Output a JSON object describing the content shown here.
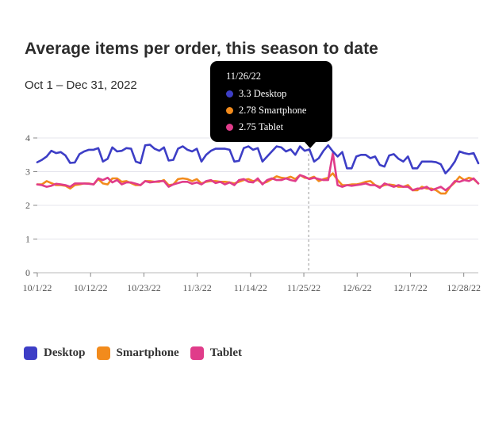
{
  "title": "Average items per order, this season to date",
  "subtitle": "Oct 1 – Dec 31, 2022",
  "colors": {
    "Desktop": "#3d3ec6",
    "Smartphone": "#f28b1c",
    "Tablet": "#e03c8a"
  },
  "tooltip": {
    "date": "11/26/22",
    "rows": [
      {
        "name": "Desktop",
        "value": "3.3",
        "color": "#3d3ec6"
      },
      {
        "name": "Smartphone",
        "value": "2.78",
        "color": "#f28b1c"
      },
      {
        "name": "Tablet",
        "value": "2.75",
        "color": "#e03c8a"
      }
    ]
  },
  "legend": [
    {
      "label": "Desktop",
      "color": "#3d3ec6"
    },
    {
      "label": "Smartphone",
      "color": "#f28b1c"
    },
    {
      "label": "Tablet",
      "color": "#e03c8a"
    }
  ],
  "chart_data": {
    "type": "line",
    "title": "Average items per order, this season to date",
    "subtitle": "Oct 1 – Dec 31, 2022",
    "x_start": "2022-10-01",
    "x_end": "2022-12-31",
    "xlabel": "",
    "ylabel": "",
    "ylim": [
      0,
      4
    ],
    "yticks": [
      0,
      1,
      2,
      3,
      4
    ],
    "xticks": [
      {
        "date": "2022-10-01",
        "label": "10/1/22"
      },
      {
        "date": "2022-10-12",
        "label": "10/12/22"
      },
      {
        "date": "2022-10-23",
        "label": "10/23/22"
      },
      {
        "date": "2022-11-03",
        "label": "11/3/22"
      },
      {
        "date": "2022-11-14",
        "label": "11/14/22"
      },
      {
        "date": "2022-11-25",
        "label": "11/25/22"
      },
      {
        "date": "2022-12-06",
        "label": "12/6/22"
      },
      {
        "date": "2022-12-17",
        "label": "12/17/22"
      },
      {
        "date": "2022-12-28",
        "label": "12/28/22"
      }
    ],
    "grid": true,
    "legend_position": "bottom-left",
    "hover_date": "2022-11-26",
    "series": [
      {
        "name": "Desktop",
        "values": [
          3.28,
          3.35,
          3.45,
          3.62,
          3.55,
          3.58,
          3.48,
          3.26,
          3.27,
          3.52,
          3.6,
          3.65,
          3.65,
          3.7,
          3.3,
          3.38,
          3.72,
          3.6,
          3.62,
          3.7,
          3.68,
          3.3,
          3.25,
          3.78,
          3.8,
          3.68,
          3.62,
          3.72,
          3.33,
          3.35,
          3.68,
          3.75,
          3.65,
          3.6,
          3.68,
          3.3,
          3.5,
          3.62,
          3.68,
          3.68,
          3.68,
          3.65,
          3.3,
          3.32,
          3.7,
          3.75,
          3.65,
          3.7,
          3.3,
          3.45,
          3.6,
          3.75,
          3.72,
          3.6,
          3.66,
          3.5,
          3.75,
          3.62,
          3.66,
          3.3,
          3.4,
          3.62,
          3.78,
          3.6,
          3.45,
          3.58,
          3.1,
          3.1,
          3.45,
          3.5,
          3.5,
          3.4,
          3.45,
          3.2,
          3.15,
          3.48,
          3.52,
          3.38,
          3.3,
          3.45,
          3.1,
          3.1,
          3.3,
          3.3,
          3.3,
          3.28,
          3.22,
          2.95,
          3.1,
          3.3,
          3.6,
          3.55,
          3.52,
          3.55,
          3.25
        ]
      },
      {
        "name": "Smartphone",
        "values": [
          2.62,
          2.62,
          2.72,
          2.66,
          2.6,
          2.6,
          2.58,
          2.5,
          2.6,
          2.62,
          2.65,
          2.65,
          2.62,
          2.78,
          2.65,
          2.62,
          2.8,
          2.8,
          2.7,
          2.72,
          2.66,
          2.6,
          2.6,
          2.72,
          2.72,
          2.7,
          2.7,
          2.75,
          2.6,
          2.62,
          2.78,
          2.8,
          2.78,
          2.72,
          2.78,
          2.65,
          2.7,
          2.72,
          2.72,
          2.7,
          2.7,
          2.68,
          2.65,
          2.7,
          2.75,
          2.78,
          2.72,
          2.75,
          2.65,
          2.7,
          2.78,
          2.86,
          2.82,
          2.8,
          2.85,
          2.78,
          2.9,
          2.82,
          2.8,
          2.85,
          2.72,
          2.78,
          2.82,
          2.95,
          2.75,
          2.6,
          2.6,
          2.62,
          2.62,
          2.65,
          2.7,
          2.72,
          2.6,
          2.55,
          2.6,
          2.62,
          2.6,
          2.55,
          2.55,
          2.6,
          2.45,
          2.45,
          2.55,
          2.5,
          2.5,
          2.45,
          2.35,
          2.35,
          2.55,
          2.68,
          2.85,
          2.75,
          2.82,
          2.78,
          2.65
        ]
      },
      {
        "name": "Tablet",
        "values": [
          2.62,
          2.6,
          2.55,
          2.58,
          2.64,
          2.62,
          2.6,
          2.55,
          2.65,
          2.65,
          2.65,
          2.64,
          2.62,
          2.8,
          2.75,
          2.82,
          2.68,
          2.75,
          2.62,
          2.68,
          2.68,
          2.64,
          2.6,
          2.72,
          2.68,
          2.7,
          2.72,
          2.72,
          2.55,
          2.62,
          2.66,
          2.7,
          2.7,
          2.64,
          2.68,
          2.62,
          2.72,
          2.75,
          2.66,
          2.7,
          2.62,
          2.68,
          2.6,
          2.75,
          2.78,
          2.7,
          2.68,
          2.8,
          2.62,
          2.75,
          2.8,
          2.75,
          2.75,
          2.8,
          2.75,
          2.72,
          2.9,
          2.85,
          2.78,
          2.82,
          2.78,
          2.75,
          2.75,
          3.55,
          2.6,
          2.55,
          2.6,
          2.58,
          2.6,
          2.62,
          2.65,
          2.6,
          2.6,
          2.52,
          2.65,
          2.6,
          2.55,
          2.6,
          2.55,
          2.55,
          2.45,
          2.5,
          2.5,
          2.55,
          2.45,
          2.5,
          2.55,
          2.45,
          2.55,
          2.72,
          2.7,
          2.75,
          2.72,
          2.8,
          2.65
        ]
      }
    ]
  }
}
